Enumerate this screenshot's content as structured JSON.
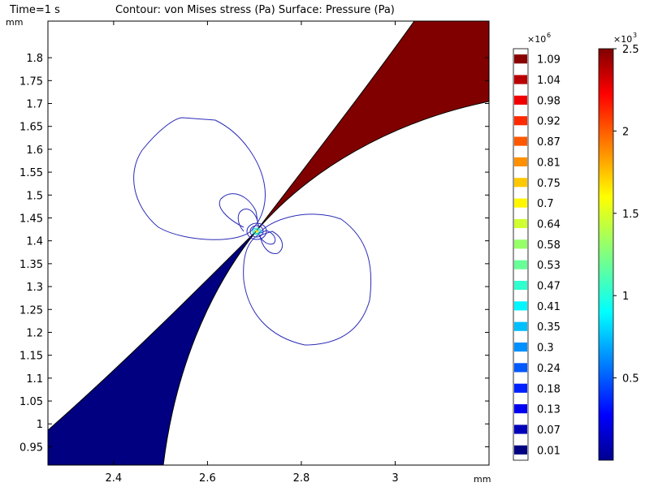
{
  "header": {
    "time": "Time=1 s",
    "title": "Contour: von Mises stress (Pa)  Surface: Pressure (Pa)"
  },
  "chart_data": {
    "type": "contour",
    "xlabel": "mm",
    "ylabel": "mm",
    "xlim": [
      2.26,
      3.2
    ],
    "ylim": [
      0.91,
      1.88
    ],
    "x_ticks": [
      "2.4",
      "2.6",
      "2.8",
      "3"
    ],
    "x_tick_values": [
      2.4,
      2.6,
      2.8,
      3.0
    ],
    "y_ticks": [
      "0.95",
      "1",
      "1.05",
      "1.1",
      "1.15",
      "1.2",
      "1.25",
      "1.3",
      "1.35",
      "1.4",
      "1.45",
      "1.5",
      "1.55",
      "1.6",
      "1.65",
      "1.7",
      "1.75",
      "1.8"
    ],
    "y_tick_values": [
      0.95,
      1.0,
      1.05,
      1.1,
      1.15,
      1.2,
      1.25,
      1.3,
      1.35,
      1.4,
      1.45,
      1.5,
      1.55,
      1.6,
      1.65,
      1.7,
      1.75,
      1.8
    ],
    "crack_tip": [
      2.71,
      1.41
    ],
    "regions": [
      {
        "name": "upper-right wedge",
        "color": "#800000",
        "value": 2500
      },
      {
        "name": "lower-left wedge",
        "color": "#000080",
        "value": 0
      }
    ],
    "contour_legend": {
      "multiplier": "×10",
      "exponent": "6",
      "labels": [
        "1.09",
        "1.04",
        "0.98",
        "0.92",
        "0.87",
        "0.81",
        "0.75",
        "0.7",
        "0.64",
        "0.58",
        "0.53",
        "0.47",
        "0.41",
        "0.35",
        "0.3",
        "0.24",
        "0.18",
        "0.13",
        "0.07",
        "0.01"
      ],
      "values": [
        1.09,
        1.04,
        0.98,
        0.92,
        0.87,
        0.81,
        0.75,
        0.7,
        0.64,
        0.58,
        0.53,
        0.47,
        0.41,
        0.35,
        0.3,
        0.24,
        0.18,
        0.13,
        0.07,
        0.01
      ],
      "range": [
        0.01,
        1.1
      ]
    },
    "surface_legend": {
      "multiplier": "×10",
      "exponent": "3",
      "labels": [
        "2.5",
        "2",
        "1.5",
        "1",
        "0.5"
      ],
      "values": [
        2.5,
        2.0,
        1.5,
        1.0,
        0.5
      ],
      "range": [
        0.0,
        2.5
      ]
    }
  }
}
